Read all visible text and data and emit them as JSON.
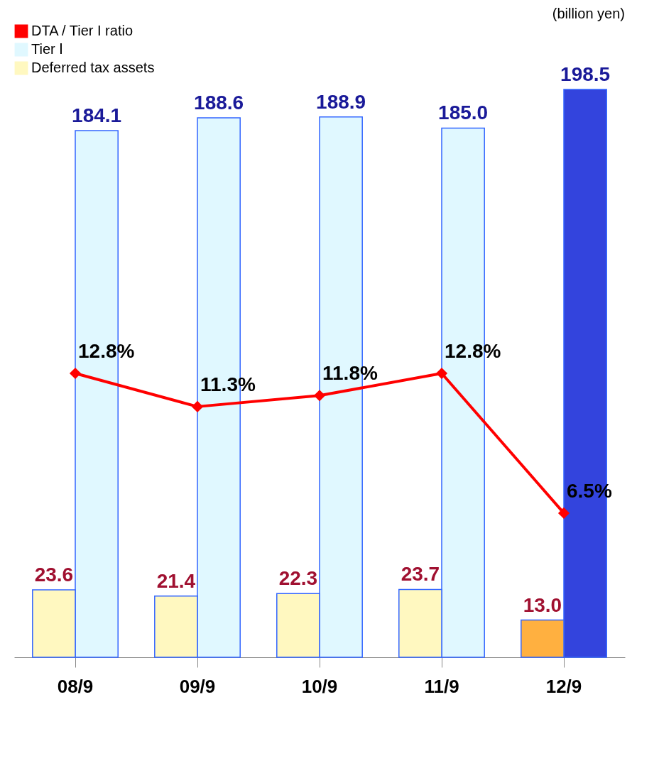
{
  "chart_data": {
    "type": "bar",
    "categories": [
      "08/9",
      "09/9",
      "10/9",
      "11/9",
      "12/9"
    ],
    "series": [
      {
        "name": "DTA / Tier I ratio",
        "type": "line",
        "axis": "y2",
        "color": "#ff0000",
        "marker": "diamond",
        "values": [
          12.8,
          11.3,
          11.8,
          12.8,
          6.5
        ],
        "value_labels": [
          "12.8%",
          "11.3%",
          "11.8%",
          "12.8%",
          "6.5%"
        ]
      },
      {
        "name": "Tier Ⅰ",
        "color": "#e0f8ff",
        "colors": [
          "#e0f8ff",
          "#e0f8ff",
          "#e0f8ff",
          "#e0f8ff",
          "#3344dd"
        ],
        "values": [
          184.1,
          188.6,
          188.9,
          185.0,
          198.5
        ],
        "value_labels": [
          "184.1",
          "188.6",
          "188.9",
          "185.0",
          "198.5"
        ]
      },
      {
        "name": "Deferred tax assets",
        "color": "#fff8c0",
        "colors": [
          "#fff8c0",
          "#fff8c0",
          "#fff8c0",
          "#fff8c0",
          "#ffb040"
        ],
        "values": [
          23.6,
          21.4,
          22.3,
          23.7,
          13.0
        ],
        "value_labels": [
          "23.6",
          "21.4",
          "22.3",
          "23.7",
          "13.0"
        ]
      }
    ],
    "annotations": [
      "(billion yen)"
    ],
    "legend": "top left",
    "tick_labels": "x",
    "grid": false
  }
}
